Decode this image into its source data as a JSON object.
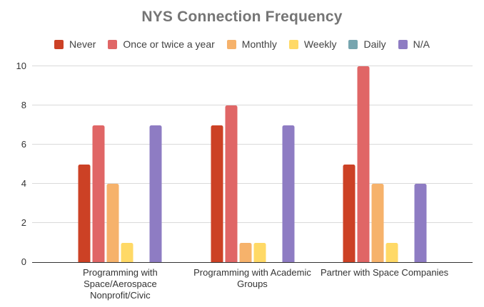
{
  "title": "NYS Connection Frequency",
  "chart_data": {
    "type": "bar",
    "title": "NYS Connection Frequency",
    "xlabel": "",
    "ylabel": "",
    "categories": [
      "Programming with Space/Aerospace Nonprofit/Civic",
      "Programming with Academic Groups",
      "Partner with Space Companies"
    ],
    "series": [
      {
        "name": "Never",
        "color": "#cc4125",
        "values": [
          5,
          7,
          5
        ]
      },
      {
        "name": "Once or twice a year",
        "color": "#e06666",
        "values": [
          7,
          8,
          10
        ]
      },
      {
        "name": "Monthly",
        "color": "#f6b26b",
        "values": [
          4,
          1,
          4
        ]
      },
      {
        "name": "Weekly",
        "color": "#ffd966",
        "values": [
          1,
          1,
          1
        ]
      },
      {
        "name": "Daily",
        "color": "#76a5af",
        "values": [
          0,
          0,
          0
        ]
      },
      {
        "name": "N/A",
        "color": "#8e7cc3",
        "values": [
          7,
          7,
          4
        ]
      }
    ],
    "ylim": [
      0,
      10
    ],
    "yticks": [
      0,
      2,
      4,
      6,
      8,
      10
    ],
    "grid": true,
    "legend_position": "top",
    "group_centers_pct": [
      20,
      50,
      80
    ]
  },
  "colors": {
    "title_text": "#757575",
    "legend_text": "#424242",
    "axis_text": "#333333",
    "gridline": "#dadada",
    "baseline": "#333333",
    "background": "#ffffff"
  }
}
